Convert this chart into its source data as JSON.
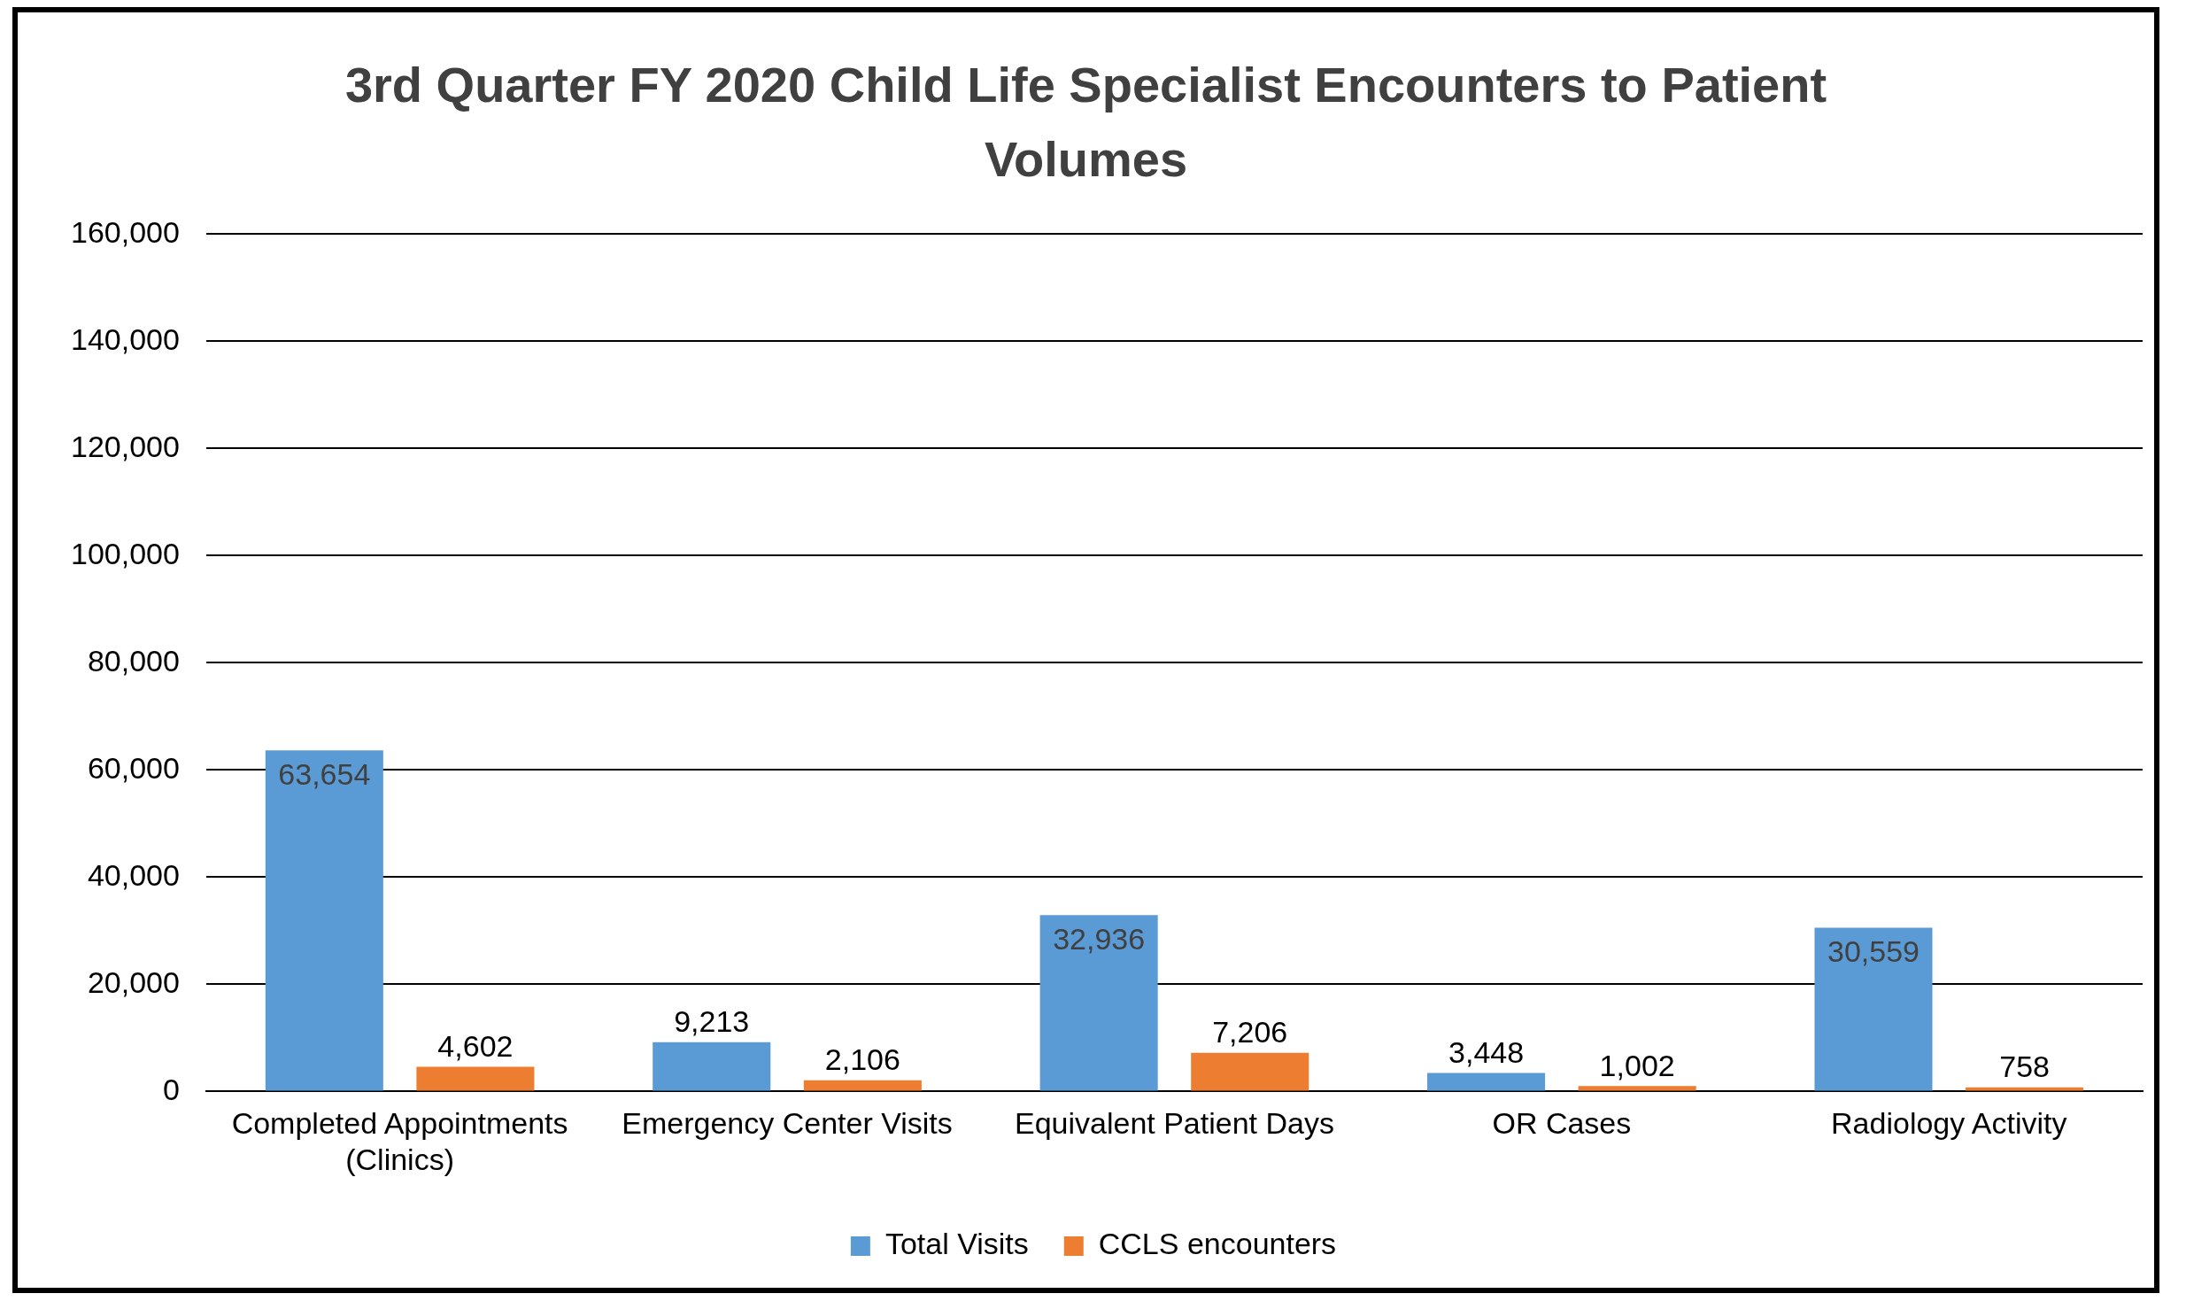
{
  "chart_data": {
    "type": "bar",
    "title": "3rd Quarter FY 2020 Child Life Specialist Encounters to Patient Volumes",
    "categories": [
      "Completed Appointments (Clinics)",
      "Emergency Center Visits",
      "Equivalent Patient Days",
      "OR Cases",
      "Radiology Activity"
    ],
    "series": [
      {
        "name": "Total Visits",
        "color": "#5b9bd5",
        "values": [
          63654,
          9213,
          32936,
          3448,
          30559
        ],
        "value_labels": [
          "63,654",
          "9,213",
          "32,936",
          "3,448",
          "30,559"
        ]
      },
      {
        "name": "CCLS encounters",
        "color": "#ed7d31",
        "values": [
          4602,
          2106,
          7206,
          1002,
          758
        ],
        "value_labels": [
          "4,602",
          "2,106",
          "7,206",
          "1,002",
          "758"
        ]
      }
    ],
    "ylim": [
      0,
      160000
    ],
    "yticks": [
      0,
      {
        "value": 20000,
        "label": "20,000"
      },
      {
        "value": 40000,
        "label": "40,000"
      },
      {
        "value": 60000,
        "label": "60,000"
      },
      {
        "value": 80000,
        "label": "80,000"
      },
      {
        "value": 100000,
        "label": "100,000"
      },
      {
        "value": 120000,
        "label": "120,000"
      },
      {
        "value": 140000,
        "label": "140,000"
      },
      {
        "value": 160000,
        "label": "160,000"
      }
    ],
    "grid": "y",
    "legend": "bottom"
  }
}
